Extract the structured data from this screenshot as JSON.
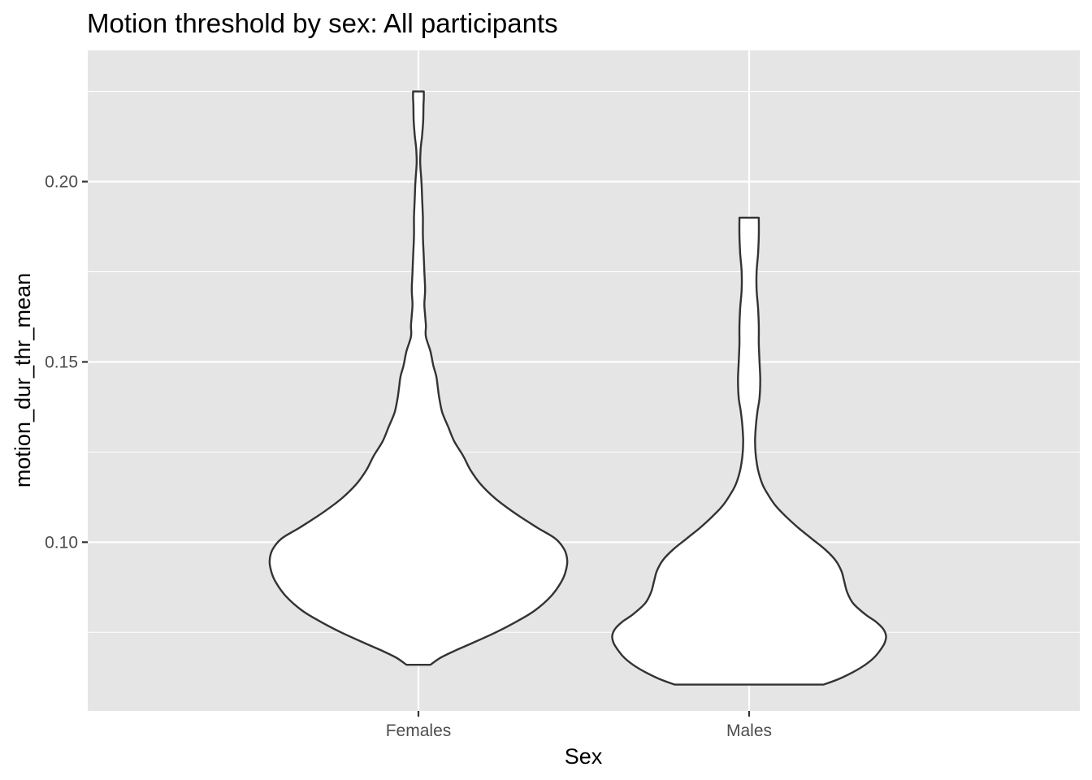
{
  "chart_data": {
    "type": "violin",
    "title": "Motion threshold by sex: All participants",
    "xlabel": "Sex",
    "ylabel": "motion_dur_thr_mean",
    "categories": [
      "Females",
      "Males"
    ],
    "y_ticks": [
      0.1,
      0.15,
      0.2
    ],
    "y_tick_labels": [
      "0.10",
      "0.15",
      "0.20"
    ],
    "ylim": [
      0.0532,
      0.2364
    ],
    "grid": true,
    "legend": "none",
    "colors": {
      "panel": "#e5e5e5",
      "grid": "#ffffff",
      "fill": "#ffffff",
      "outline": "#333333"
    },
    "violins": [
      {
        "category": "Females",
        "y_min": 0.066,
        "y_max": 0.225,
        "density_profile": [
          [
            0.066,
            0.08
          ],
          [
            0.068,
            0.15
          ],
          [
            0.07,
            0.25
          ],
          [
            0.072,
            0.36
          ],
          [
            0.075,
            0.52
          ],
          [
            0.078,
            0.66
          ],
          [
            0.081,
            0.78
          ],
          [
            0.085,
            0.89
          ],
          [
            0.089,
            0.96
          ],
          [
            0.092,
            0.99
          ],
          [
            0.095,
            1.0
          ],
          [
            0.098,
            0.98
          ],
          [
            0.101,
            0.92
          ],
          [
            0.104,
            0.8
          ],
          [
            0.108,
            0.65
          ],
          [
            0.112,
            0.52
          ],
          [
            0.116,
            0.42
          ],
          [
            0.12,
            0.35
          ],
          [
            0.124,
            0.3
          ],
          [
            0.128,
            0.24
          ],
          [
            0.132,
            0.2
          ],
          [
            0.136,
            0.16
          ],
          [
            0.14,
            0.14
          ],
          [
            0.143,
            0.13
          ],
          [
            0.146,
            0.12
          ],
          [
            0.149,
            0.1
          ],
          [
            0.153,
            0.08
          ],
          [
            0.157,
            0.05
          ],
          [
            0.16,
            0.05
          ],
          [
            0.163,
            0.045
          ],
          [
            0.166,
            0.04
          ],
          [
            0.17,
            0.045
          ],
          [
            0.175,
            0.04
          ],
          [
            0.18,
            0.035
          ],
          [
            0.185,
            0.03
          ],
          [
            0.19,
            0.03
          ],
          [
            0.195,
            0.025
          ],
          [
            0.2,
            0.02
          ],
          [
            0.205,
            0.012
          ],
          [
            0.209,
            0.015
          ],
          [
            0.213,
            0.025
          ],
          [
            0.217,
            0.032
          ],
          [
            0.221,
            0.034
          ],
          [
            0.223,
            0.036
          ],
          [
            0.225,
            0.036
          ]
        ]
      },
      {
        "category": "Males",
        "y_min": 0.0605,
        "y_max": 0.19,
        "density_profile": [
          [
            0.0605,
            0.5
          ],
          [
            0.062,
            0.6
          ],
          [
            0.064,
            0.7
          ],
          [
            0.066,
            0.78
          ],
          [
            0.068,
            0.84
          ],
          [
            0.07,
            0.88
          ],
          [
            0.072,
            0.91
          ],
          [
            0.074,
            0.92
          ],
          [
            0.076,
            0.9
          ],
          [
            0.078,
            0.85
          ],
          [
            0.08,
            0.78
          ],
          [
            0.083,
            0.7
          ],
          [
            0.086,
            0.66
          ],
          [
            0.089,
            0.64
          ],
          [
            0.092,
            0.62
          ],
          [
            0.095,
            0.58
          ],
          [
            0.098,
            0.51
          ],
          [
            0.101,
            0.42
          ],
          [
            0.104,
            0.33
          ],
          [
            0.107,
            0.25
          ],
          [
            0.11,
            0.18
          ],
          [
            0.113,
            0.13
          ],
          [
            0.116,
            0.09
          ],
          [
            0.12,
            0.06
          ],
          [
            0.124,
            0.045
          ],
          [
            0.128,
            0.04
          ],
          [
            0.132,
            0.045
          ],
          [
            0.136,
            0.055
          ],
          [
            0.14,
            0.07
          ],
          [
            0.145,
            0.075
          ],
          [
            0.15,
            0.07
          ],
          [
            0.155,
            0.065
          ],
          [
            0.16,
            0.065
          ],
          [
            0.165,
            0.06
          ],
          [
            0.17,
            0.05
          ],
          [
            0.175,
            0.05
          ],
          [
            0.18,
            0.06
          ],
          [
            0.185,
            0.065
          ],
          [
            0.19,
            0.065
          ]
        ]
      }
    ]
  }
}
